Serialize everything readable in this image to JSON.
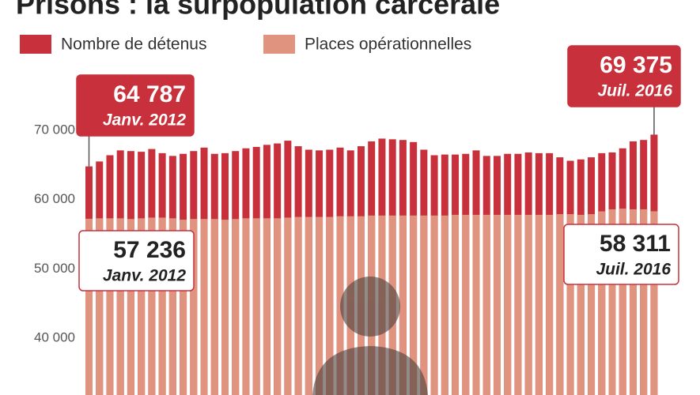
{
  "chart_data": {
    "type": "bar",
    "title": "Prisons : la surpopulation carcérale",
    "series": [
      {
        "name": "Nombre de détenus",
        "color": "#c8303c",
        "values": [
          64787,
          65500,
          66400,
          67100,
          67000,
          66900,
          67300,
          66700,
          66300,
          66600,
          67000,
          67500,
          66600,
          66700,
          67000,
          67400,
          67600,
          67900,
          68100,
          68500,
          67700,
          67200,
          67100,
          67200,
          67500,
          67100,
          67700,
          68400,
          68800,
          68700,
          68600,
          68300,
          67200,
          66400,
          66500,
          66500,
          66600,
          67100,
          66300,
          66300,
          66600,
          66600,
          66800,
          66700,
          66700,
          66100,
          65600,
          65800,
          66100,
          66700,
          66800,
          67400,
          68400,
          68600,
          69375
        ]
      },
      {
        "name": "Places opérationnelles",
        "color": "#e0937f",
        "values": [
          57236,
          57300,
          57300,
          57300,
          57200,
          57300,
          57400,
          57400,
          57300,
          57100,
          57200,
          57200,
          57200,
          57100,
          57200,
          57300,
          57300,
          57300,
          57300,
          57400,
          57500,
          57500,
          57500,
          57500,
          57600,
          57600,
          57600,
          57700,
          57700,
          57700,
          57700,
          57700,
          57700,
          57700,
          57700,
          57800,
          57800,
          57800,
          57800,
          57800,
          57800,
          57800,
          57800,
          57800,
          57800,
          57900,
          57900,
          57800,
          57900,
          58300,
          58600,
          58700,
          58600,
          58600,
          58311
        ]
      }
    ],
    "ylim": [
      31800,
      88800
    ],
    "yticks": [
      {
        "value": 40000,
        "label": "40 000"
      },
      {
        "value": 50000,
        "label": "50 000"
      },
      {
        "value": 60000,
        "label": "60 000"
      },
      {
        "value": 70000,
        "label": "70 000"
      }
    ],
    "grid": false,
    "annotations": [
      {
        "series": 0,
        "index": 0,
        "label": "64 787",
        "date": "Janv. 2012"
      },
      {
        "series": 0,
        "index": 54,
        "label": "69 375",
        "date": "Juil. 2016"
      },
      {
        "series": 1,
        "index": 0,
        "label": "57 236",
        "date": "Janv. 2012"
      },
      {
        "series": 1,
        "index": 54,
        "label": "58 311",
        "date": "Juil. 2016"
      }
    ]
  }
}
